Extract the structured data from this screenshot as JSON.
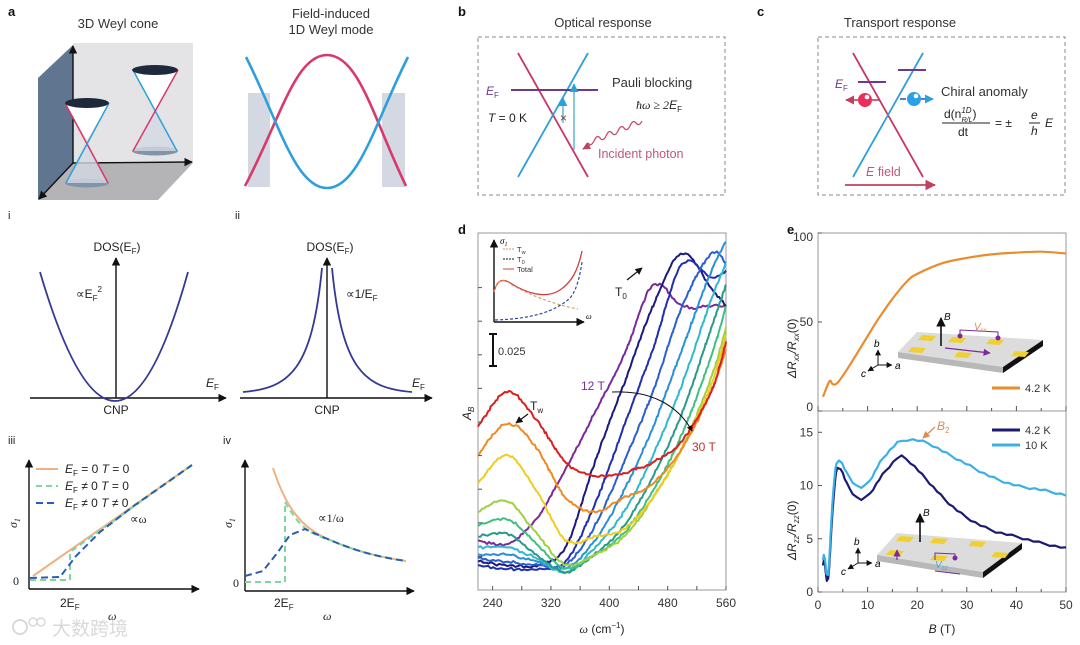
{
  "panels": {
    "a": {
      "label": "a",
      "left_title": "3D Weyl cone",
      "right_title_1": "Field-induced",
      "right_title_2": "1D Weyl mode"
    },
    "b": {
      "label": "b",
      "title": "Optical response",
      "ef_main": "E",
      "ef_sub": "F",
      "temp_var": "T",
      "temp_rest": " = 0 K",
      "pauli": "Pauli blocking",
      "cond_a": "ħω ≥ 2",
      "cond_e": "E",
      "cond_sub": "F",
      "photon": "Incident photon",
      "blocked_mark": "×"
    },
    "c": {
      "label": "c",
      "title": "Transport response",
      "ef_main": "E",
      "ef_sub": "F",
      "anomaly": "Chiral anomaly",
      "eq_num_a": "d(n",
      "eq_sup": "1D",
      "eq_sub": "R/L",
      "eq_num_b": ")",
      "eq_den": "dt",
      "eq_mid": "= ±",
      "eq_e": "e",
      "eq_h": "h",
      "eq_E": "E",
      "field_var": "E",
      "field_rest": " field"
    },
    "i": {
      "label": "i",
      "ylabel": "DOS(E",
      "ylabel_sub": "F",
      "ylabel_end": ")",
      "prop": "∝E",
      "prop_sub": "F",
      "prop_sup": "2",
      "xlabel": "E",
      "xlabel_sub": "F",
      "origin": "CNP"
    },
    "ii": {
      "label": "ii",
      "ylabel": "DOS(E",
      "ylabel_sub": "F",
      "ylabel_end": ")",
      "prop": "∝1/E",
      "prop_sub": "F",
      "xlabel": "E",
      "xlabel_sub": "F",
      "origin": "CNP"
    },
    "iii": {
      "label": "iii",
      "ylabel": "σ",
      "ylabel_sub": "1",
      "zero": "0",
      "xtick": "2E",
      "xtick_sub": "F",
      "xlabel": "ω",
      "prop": "∝ω",
      "legend": [
        {
          "a": "E",
          "sub": "F",
          "b": " = 0 ",
          "c": "T",
          "d": " = 0",
          "color": "#f0b080"
        },
        {
          "a": "E",
          "sub": "F",
          "b": " ≠ 0 ",
          "c": "T",
          "d": " = 0",
          "color": "#7fd6a0"
        },
        {
          "a": "E",
          "sub": "F",
          "b": " ≠ 0 ",
          "c": "T",
          "d": " ≠ 0",
          "color": "#2a5fb0"
        }
      ]
    },
    "iv": {
      "label": "iv",
      "ylabel": "σ",
      "ylabel_sub": "1",
      "zero": "0",
      "xtick": "2E",
      "xtick_sub": "F",
      "xlabel": "ω",
      "prop": "∝1/ω"
    },
    "d": {
      "label": "d",
      "inset_ylabel": "σ",
      "inset_ylabel_sub": "1",
      "inset_xlabel": "ω",
      "inset_legend": [
        {
          "a": "T",
          "sub": "w"
        },
        {
          "a": "T",
          "sub": "0"
        },
        {
          "a": "Total",
          "sub": ""
        }
      ],
      "scale_bar": "0.025",
      "t0_a": "T",
      "t0_sub": "0",
      "tw_a": "T",
      "tw_sub": "w",
      "field_low": "12 T",
      "field_high": "30 T"
    },
    "e": {
      "label": "e",
      "b2_a": "B",
      "b2_sub": "2",
      "top_inset": {
        "B": "B",
        "V": "V",
        "V_sub": "xx",
        "axes": [
          "b",
          "a",
          "c"
        ]
      },
      "bottom_inset": {
        "B": "B",
        "V": "V",
        "V_sub": "zz",
        "axes": [
          "b",
          "a",
          "c"
        ]
      }
    }
  },
  "colors": {
    "red": "#d8386a",
    "blue": "#2f9fdc",
    "purple": "#6b3a8c",
    "orange": "#ea8c2e",
    "navy": "#1b1b72",
    "cyan": "#3cb0e6"
  },
  "watermark": "大数跨境",
  "chart_data": [
    {
      "id": "d",
      "type": "line",
      "title": "",
      "xlabel": "ω (cm⁻¹)",
      "ylabel": "A_B",
      "xlim": [
        220,
        560
      ],
      "ylim": [
        0,
        1
      ],
      "xticks": [
        240,
        320,
        400,
        480,
        560
      ],
      "grid": false,
      "x": [
        220,
        260,
        300,
        340,
        380,
        420,
        460,
        500,
        540,
        560
      ],
      "series": [
        {
          "name": "12 T",
          "color": "#7a2a9a",
          "values": [
            0.14,
            0.13,
            0.2,
            0.34,
            0.5,
            0.66,
            0.86,
            0.8,
            0.8,
            0.8
          ]
        },
        {
          "name": "",
          "color": "#1a1a80",
          "values": [
            0.08,
            0.07,
            0.07,
            0.12,
            0.36,
            0.58,
            0.8,
            0.95,
            0.85,
            0.8
          ]
        },
        {
          "name": "",
          "color": "#1f2fb0",
          "values": [
            0.07,
            0.06,
            0.06,
            0.08,
            0.24,
            0.46,
            0.68,
            0.92,
            0.88,
            0.9
          ]
        },
        {
          "name": "",
          "color": "#2a5fd0",
          "values": [
            0.09,
            0.08,
            0.07,
            0.07,
            0.18,
            0.36,
            0.56,
            0.8,
            0.95,
            0.92
          ]
        },
        {
          "name": "",
          "color": "#2a90d8",
          "values": [
            0.1,
            0.1,
            0.08,
            0.06,
            0.14,
            0.28,
            0.46,
            0.68,
            0.9,
            0.98
          ]
        },
        {
          "name": "",
          "color": "#30b8d0",
          "values": [
            0.12,
            0.12,
            0.09,
            0.05,
            0.12,
            0.22,
            0.38,
            0.58,
            0.82,
            0.92
          ]
        },
        {
          "name": "",
          "color": "#2a9a88",
          "values": [
            0.15,
            0.16,
            0.1,
            0.05,
            0.1,
            0.18,
            0.32,
            0.5,
            0.74,
            0.86
          ]
        },
        {
          "name": "",
          "color": "#40c080",
          "values": [
            0.18,
            0.2,
            0.13,
            0.06,
            0.1,
            0.16,
            0.28,
            0.44,
            0.66,
            0.8
          ]
        },
        {
          "name": "",
          "color": "#a0d040",
          "values": [
            0.22,
            0.25,
            0.16,
            0.07,
            0.1,
            0.15,
            0.26,
            0.4,
            0.6,
            0.74
          ]
        },
        {
          "name": "",
          "color": "#f0cc20",
          "values": [
            0.3,
            0.38,
            0.28,
            0.14,
            0.15,
            0.17,
            0.26,
            0.4,
            0.58,
            0.72
          ]
        },
        {
          "name": "",
          "color": "#f08a20",
          "values": [
            0.38,
            0.47,
            0.4,
            0.26,
            0.22,
            0.26,
            0.3,
            0.4,
            0.56,
            0.68
          ]
        },
        {
          "name": "30 T",
          "color": "#d82020",
          "values": [
            0.46,
            0.56,
            0.48,
            0.36,
            0.32,
            0.33,
            0.36,
            0.42,
            0.56,
            0.7
          ]
        }
      ]
    },
    {
      "id": "e-top",
      "type": "line",
      "xlabel": "",
      "ylabel": "ΔR_xx/R_xx(0)",
      "ylabel_parts": {
        "a": "ΔR",
        "sub1": "xx",
        "b": "/R",
        "sub2": "xx",
        "c": "(0)"
      },
      "xlim": [
        0,
        50
      ],
      "ylim": [
        0,
        100
      ],
      "yticks": [
        0,
        50,
        100
      ],
      "legend": "bottom-right",
      "series": [
        {
          "name": "4.2 K",
          "color": "#ea8c2e",
          "x": [
            1,
            2,
            2.5,
            3,
            4,
            6,
            8,
            10,
            12,
            15,
            18,
            20,
            25,
            30,
            35,
            40,
            45,
            50
          ],
          "values": [
            8,
            15,
            17,
            15,
            16,
            24,
            33,
            42,
            51,
            63,
            73,
            77,
            83,
            86,
            88,
            89,
            89.5,
            88.5
          ]
        }
      ]
    },
    {
      "id": "e-bottom",
      "type": "line",
      "xlabel": "B (T)",
      "xlabel_parts": {
        "a": "B",
        "b": " (T)"
      },
      "ylabel": "ΔR_zz/R_zz(0)",
      "ylabel_parts": {
        "a": "ΔR",
        "sub1": "zz",
        "b": "/R",
        "sub2": "zz",
        "c": "(0)"
      },
      "xlim": [
        0,
        50
      ],
      "ylim": [
        0,
        17
      ],
      "xticks": [
        0,
        10,
        20,
        30,
        40,
        50
      ],
      "yticks": [
        0,
        5,
        10,
        15
      ],
      "legend": "top-right",
      "series": [
        {
          "name": "4.2 K",
          "color": "#1b1b72",
          "x": [
            1,
            1.3,
            1.8,
            2.2,
            3,
            4,
            6,
            8,
            10,
            13,
            16,
            17,
            19,
            22,
            26,
            30,
            35,
            40,
            45,
            50
          ],
          "values": [
            2.5,
            3,
            1,
            2,
            8,
            11.8,
            10,
            8.8,
            9,
            11,
            12.6,
            12.7,
            12,
            10.5,
            8.5,
            7,
            5.8,
            5.2,
            4.6,
            4.1
          ]
        },
        {
          "name": "10 K",
          "color": "#3cb0e6",
          "x": [
            1,
            1.3,
            1.8,
            2.2,
            3,
            4,
            6,
            8,
            10,
            13,
            16,
            17,
            19,
            22,
            26,
            30,
            35,
            40,
            45,
            50
          ],
          "values": [
            3,
            3.5,
            1.5,
            2.5,
            9,
            12.4,
            11,
            9.9,
            10.2,
            12.5,
            14,
            14.2,
            14.3,
            14,
            13,
            12,
            10.8,
            10,
            9.6,
            9.1
          ]
        }
      ]
    }
  ]
}
